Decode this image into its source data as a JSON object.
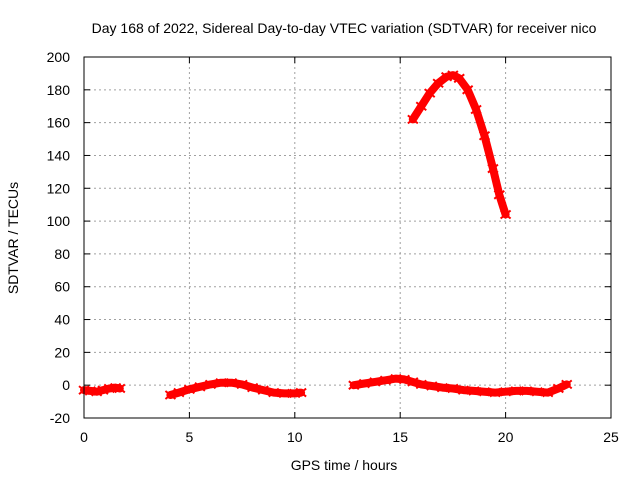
{
  "chart_data": {
    "type": "scatter",
    "title": "Day 168 of 2022, Sidereal Day-to-day VTEC variation (SDTVAR) for receiver nico",
    "xlabel": "GPS time / hours",
    "ylabel": "SDTVAR / TECUs",
    "xlim": [
      0,
      25
    ],
    "ylim": [
      -20,
      200
    ],
    "xticks": [
      0,
      5,
      10,
      15,
      20,
      25
    ],
    "yticks": [
      -20,
      0,
      20,
      40,
      60,
      80,
      100,
      120,
      140,
      160,
      180,
      200
    ],
    "grid": true,
    "series": [
      {
        "name": "SDTVAR",
        "color": "#ff0000",
        "segments": [
          {
            "x": [
              0.0,
              0.3,
              0.6,
              0.9,
              1.2,
              1.5,
              1.7
            ],
            "y": [
              -3,
              -3.5,
              -4,
              -3,
              -2,
              -1.5,
              -2
            ]
          },
          {
            "x": [
              4.1,
              4.5,
              5.0,
              5.5,
              6.0,
              6.5,
              7.0,
              7.5,
              8.0,
              8.5,
              9.0,
              9.5,
              10.0,
              10.3
            ],
            "y": [
              -6,
              -4.5,
              -2.5,
              -1,
              0.5,
              1.5,
              1.5,
              0.5,
              -1.5,
              -3,
              -4.5,
              -5,
              -5,
              -4.5
            ]
          },
          {
            "x": [
              12.8,
              13.3,
              13.8,
              14.3,
              14.8,
              15.2,
              15.6,
              16.0,
              16.5,
              17.0,
              17.5,
              18.0,
              18.5,
              19.0,
              19.5,
              20.0,
              20.5,
              21.0,
              21.5,
              22.0,
              22.5,
              22.9
            ],
            "y": [
              0,
              1,
              2,
              3,
              4,
              3.5,
              2,
              0.5,
              -0.5,
              -1.5,
              -2,
              -3,
              -3.5,
              -4,
              -4.5,
              -4,
              -3.5,
              -3.5,
              -4,
              -4.5,
              -2,
              0.5
            ]
          },
          {
            "x": [
              15.6,
              16.0,
              16.4,
              16.8,
              17.2,
              17.5,
              17.8,
              18.2,
              18.6,
              19.0,
              19.4,
              19.7,
              20.0
            ],
            "y": [
              162,
              170,
              178,
              184,
              188,
              189,
              187,
              180,
              168,
              152,
              132,
              116,
              104
            ]
          }
        ]
      }
    ]
  }
}
